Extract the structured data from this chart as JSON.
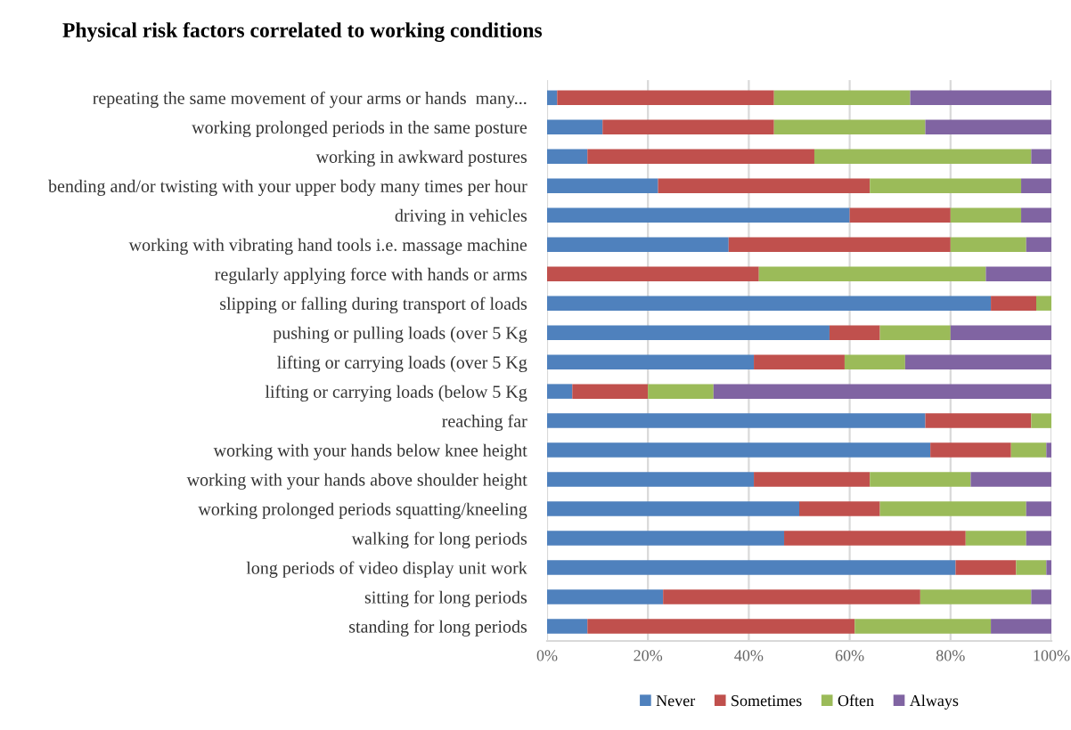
{
  "chart_data": {
    "type": "bar",
    "orientation": "horizontal",
    "stacked": true,
    "title": "Physical risk factors correlated to working conditions",
    "categories": [
      "repeating the same movement of your arms or hands  many...",
      "working prolonged periods in the same posture",
      "working in awkward postures",
      "bending and/or twisting with your upper body many times per hour",
      "driving in vehicles",
      "working with vibrating hand tools i.e. massage machine",
      "regularly applying force with hands or arms",
      "slipping or falling during transport of loads",
      "pushing or pulling loads (over 5 Kg",
      "lifting or carrying loads (over 5 Kg",
      "lifting or carrying loads (below 5 Kg",
      "reaching far",
      "working with your hands below knee height",
      "working with your hands above shoulder height",
      "working prolonged periods squatting/kneeling",
      "walking for long periods",
      "long periods of video display unit work",
      "sitting for long periods",
      "standing for long periods"
    ],
    "series": [
      {
        "name": "Never",
        "color": "#4f81bd",
        "values": [
          2,
          11,
          8,
          22,
          60,
          36,
          0,
          88,
          56,
          41,
          5,
          75,
          76,
          41,
          50,
          47,
          81,
          23,
          8
        ]
      },
      {
        "name": "Sometimes",
        "color": "#c0504d",
        "values": [
          43,
          34,
          45,
          42,
          20,
          44,
          42,
          9,
          10,
          18,
          15,
          21,
          16,
          23,
          16,
          36,
          12,
          51,
          53
        ]
      },
      {
        "name": "Often",
        "color": "#9bbb59",
        "values": [
          27,
          30,
          43,
          30,
          14,
          15,
          45,
          3,
          14,
          12,
          13,
          4,
          7,
          20,
          29,
          12,
          6,
          22,
          27
        ]
      },
      {
        "name": "Always",
        "color": "#8064a2",
        "values": [
          28,
          25,
          4,
          6,
          6,
          5,
          13,
          0,
          20,
          29,
          67,
          0,
          1,
          16,
          5,
          5,
          1,
          4,
          12
        ]
      }
    ],
    "xlim": [
      0,
      100
    ],
    "xticks": [
      {
        "value": 0,
        "label": "0%"
      },
      {
        "value": 20,
        "label": "20%"
      },
      {
        "value": 40,
        "label": "40%"
      },
      {
        "value": 60,
        "label": "60%"
      },
      {
        "value": 80,
        "label": "80%"
      },
      {
        "value": 100,
        "label": "100%"
      }
    ],
    "grid": "x",
    "legend": "bottom"
  }
}
